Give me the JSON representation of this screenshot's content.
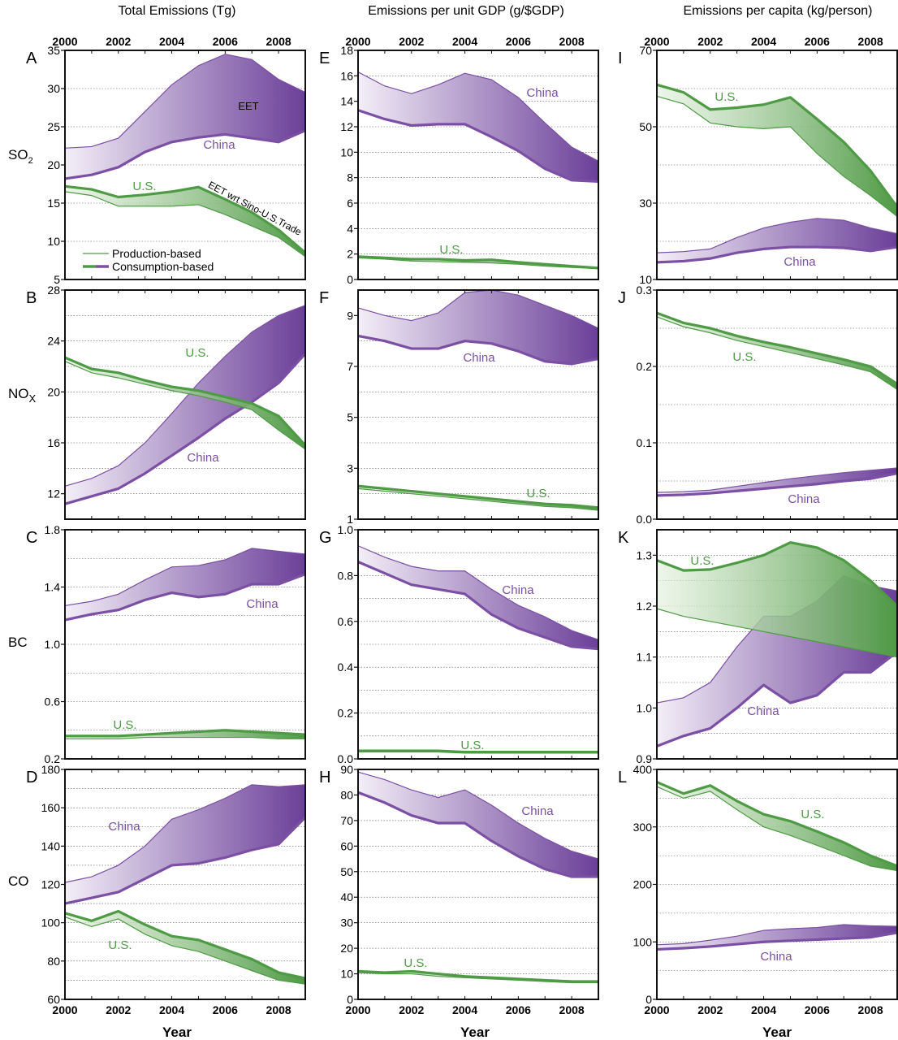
{
  "column_titles": [
    "Total Emissions (Tg)",
    "Emissions per unit GDP (g/$GDP)",
    "Emissions per capita (kg/person)"
  ],
  "row_labels": [
    "SO2",
    "NOX",
    "BC",
    "CO"
  ],
  "x_axis_title": "Year",
  "colors": {
    "china": "#7b4fa3",
    "china_light": "#f3eef7",
    "china_dark": "#6b3f99",
    "us": "#4f9a45",
    "us_light": "#e6f2e1"
  },
  "legend": {
    "production": "Production-based",
    "consumption": "Consumption-based"
  },
  "annotations": {
    "eet": "EET",
    "eet_trade": "EET wrt Sino-U.S.Trade"
  },
  "series_names": {
    "china": "China",
    "us": "U.S."
  },
  "chart_data": [
    {
      "panel": "A",
      "type": "area",
      "row": "SO2",
      "col": 0,
      "xlim": [
        2000,
        2009
      ],
      "ylim": [
        5,
        35
      ],
      "yticks": [
        5,
        10,
        15,
        20,
        25,
        30,
        35
      ],
      "x": [
        2000,
        2001,
        2002,
        2003,
        2004,
        2005,
        2006,
        2007,
        2008,
        2009
      ],
      "series": [
        {
          "name": "China",
          "production": [
            22.2,
            22.4,
            23.5,
            27,
            30.5,
            33,
            34.5,
            33.8,
            31.2,
            29.5
          ],
          "consumption": [
            18.2,
            18.7,
            19.7,
            21.7,
            23,
            23.6,
            24,
            23.5,
            23,
            24.5
          ]
        },
        {
          "name": "U.S.",
          "production": [
            16.5,
            16,
            14.6,
            14.6,
            14.6,
            14.8,
            13.5,
            12,
            10.5,
            8
          ],
          "consumption": [
            17.2,
            16.8,
            15.8,
            16.1,
            16.5,
            17.1,
            15.5,
            13.8,
            11.5,
            8.5
          ]
        }
      ]
    },
    {
      "panel": "E",
      "type": "area",
      "row": "SO2",
      "col": 1,
      "xlim": [
        2000,
        2009
      ],
      "ylim": [
        0,
        18
      ],
      "yticks": [
        0,
        2,
        4,
        6,
        8,
        10,
        12,
        14,
        16,
        18
      ],
      "x": [
        2000,
        2001,
        2002,
        2003,
        2004,
        2005,
        2006,
        2007,
        2008,
        2009
      ],
      "series": [
        {
          "name": "China",
          "production": [
            16.3,
            15.2,
            14.6,
            15.3,
            16.2,
            15.7,
            14.3,
            12.3,
            10.4,
            9.3
          ],
          "consumption": [
            13.3,
            12.6,
            12.1,
            12.2,
            12.2,
            11.2,
            10.1,
            8.7,
            7.8,
            7.7
          ]
        },
        {
          "name": "U.S.",
          "production": [
            1.7,
            1.6,
            1.45,
            1.4,
            1.35,
            1.3,
            1.2,
            1.05,
            0.95,
            0.85
          ],
          "consumption": [
            1.8,
            1.7,
            1.6,
            1.6,
            1.5,
            1.55,
            1.35,
            1.2,
            1.05,
            0.9
          ]
        }
      ]
    },
    {
      "panel": "I",
      "type": "area",
      "row": "SO2",
      "col": 2,
      "xlim": [
        2000,
        2009
      ],
      "ylim": [
        10,
        70
      ],
      "yticks": [
        10,
        30,
        50,
        70
      ],
      "ygrid": [
        10,
        20,
        30,
        40,
        50,
        60,
        70
      ],
      "x": [
        2000,
        2001,
        2002,
        2003,
        2004,
        2005,
        2006,
        2007,
        2008,
        2009
      ],
      "series": [
        {
          "name": "China",
          "production": [
            17,
            17.3,
            18,
            21,
            23.5,
            25,
            26,
            25.5,
            23.5,
            22
          ],
          "consumption": [
            14.5,
            14.8,
            15.5,
            17,
            18,
            18.5,
            18.5,
            18.3,
            17.5,
            18.5
          ]
        },
        {
          "name": "U.S.",
          "production": [
            58,
            56,
            51,
            50,
            49.5,
            50,
            43,
            37,
            32,
            26.5
          ],
          "consumption": [
            61,
            59,
            54.5,
            55,
            55.8,
            57.7,
            52,
            46,
            38.5,
            29
          ]
        }
      ]
    },
    {
      "panel": "B",
      "type": "area",
      "row": "NOX",
      "col": 0,
      "xlim": [
        2000,
        2009
      ],
      "ylim": [
        10,
        28
      ],
      "yticks": [
        12,
        16,
        20,
        24,
        28
      ],
      "ygrid": [
        10,
        12,
        14,
        16,
        18,
        20,
        22,
        24,
        26,
        28
      ],
      "x": [
        2000,
        2001,
        2002,
        2003,
        2004,
        2005,
        2006,
        2007,
        2008,
        2009
      ],
      "series": [
        {
          "name": "China",
          "production": [
            12.6,
            13.2,
            14.2,
            16,
            18.3,
            20.7,
            22.8,
            24.7,
            26,
            26.8
          ],
          "consumption": [
            11.2,
            11.8,
            12.4,
            13.6,
            15,
            16.4,
            17.9,
            19.2,
            20.7,
            23
          ]
        },
        {
          "name": "U.S.",
          "production": [
            22.4,
            21.5,
            21.1,
            20.6,
            20.1,
            19.7,
            19.2,
            18.6,
            17,
            15.5
          ],
          "consumption": [
            22.7,
            21.8,
            21.5,
            20.9,
            20.4,
            20.1,
            19.6,
            19.1,
            18.1,
            15.8
          ]
        }
      ]
    },
    {
      "panel": "F",
      "type": "area",
      "row": "NOX",
      "col": 1,
      "xlim": [
        2000,
        2009
      ],
      "ylim": [
        1,
        10
      ],
      "yticks": [
        1,
        3,
        5,
        7,
        9
      ],
      "ygrid": [
        1,
        2,
        3,
        4,
        5,
        6,
        7,
        8,
        9,
        10
      ],
      "x": [
        2000,
        2001,
        2002,
        2003,
        2004,
        2005,
        2006,
        2007,
        2008,
        2009
      ],
      "series": [
        {
          "name": "China",
          "production": [
            9.3,
            9,
            8.8,
            9.1,
            9.9,
            10,
            9.8,
            9.4,
            9,
            8.5
          ],
          "consumption": [
            8.2,
            8,
            7.7,
            7.7,
            8,
            7.9,
            7.6,
            7.2,
            7.1,
            7.3
          ]
        },
        {
          "name": "U.S.",
          "production": [
            2.2,
            2.1,
            2,
            1.9,
            1.8,
            1.7,
            1.6,
            1.5,
            1.45,
            1.35
          ],
          "consumption": [
            2.3,
            2.2,
            2.1,
            2,
            1.9,
            1.8,
            1.7,
            1.6,
            1.55,
            1.45
          ]
        }
      ]
    },
    {
      "panel": "J",
      "type": "area",
      "row": "NOX",
      "col": 2,
      "xlim": [
        2000,
        2009
      ],
      "ylim": [
        0,
        0.3
      ],
      "yticks": [
        0,
        0.1,
        0.2,
        0.3
      ],
      "ygrid": [
        0,
        0.05,
        0.1,
        0.15,
        0.2,
        0.25,
        0.3
      ],
      "x": [
        2000,
        2001,
        2002,
        2003,
        2004,
        2005,
        2006,
        2007,
        2008,
        2009
      ],
      "series": [
        {
          "name": "China",
          "production": [
            0.035,
            0.036,
            0.038,
            0.043,
            0.048,
            0.053,
            0.057,
            0.061,
            0.064,
            0.067
          ],
          "consumption": [
            0.031,
            0.032,
            0.034,
            0.037,
            0.04,
            0.043,
            0.046,
            0.05,
            0.053,
            0.06
          ]
        },
        {
          "name": "U.S.",
          "production": [
            0.265,
            0.252,
            0.244,
            0.234,
            0.226,
            0.218,
            0.21,
            0.202,
            0.193,
            0.17
          ],
          "consumption": [
            0.27,
            0.257,
            0.25,
            0.24,
            0.232,
            0.225,
            0.217,
            0.209,
            0.2,
            0.177
          ]
        }
      ]
    },
    {
      "panel": "C",
      "type": "area",
      "row": "BC",
      "col": 0,
      "xlim": [
        2000,
        2009
      ],
      "ylim": [
        0.2,
        1.8
      ],
      "yticks": [
        0.2,
        0.6,
        1.0,
        1.4,
        1.8
      ],
      "ygrid": [
        0.2,
        0.4,
        0.6,
        0.8,
        1.0,
        1.2,
        1.4,
        1.6,
        1.8
      ],
      "x": [
        2000,
        2001,
        2002,
        2003,
        2004,
        2005,
        2006,
        2007,
        2008,
        2009
      ],
      "series": [
        {
          "name": "China",
          "production": [
            1.27,
            1.3,
            1.35,
            1.45,
            1.54,
            1.55,
            1.59,
            1.67,
            1.65,
            1.63
          ],
          "consumption": [
            1.17,
            1.21,
            1.24,
            1.31,
            1.36,
            1.33,
            1.35,
            1.42,
            1.42,
            1.49
          ]
        },
        {
          "name": "U.S.",
          "production": [
            0.34,
            0.34,
            0.34,
            0.35,
            0.35,
            0.35,
            0.35,
            0.35,
            0.34,
            0.34
          ],
          "consumption": [
            0.36,
            0.36,
            0.36,
            0.37,
            0.38,
            0.39,
            0.4,
            0.39,
            0.38,
            0.37
          ]
        }
      ]
    },
    {
      "panel": "G",
      "type": "area",
      "row": "BC",
      "col": 1,
      "xlim": [
        2000,
        2009
      ],
      "ylim": [
        0,
        1.0
      ],
      "yticks": [
        0,
        0.2,
        0.4,
        0.6,
        0.8,
        1.0
      ],
      "ygrid": [
        0,
        0.1,
        0.2,
        0.3,
        0.4,
        0.5,
        0.6,
        0.7,
        0.8,
        0.9,
        1.0
      ],
      "x": [
        2000,
        2001,
        2002,
        2003,
        2004,
        2005,
        2006,
        2007,
        2008,
        2009
      ],
      "series": [
        {
          "name": "China",
          "production": [
            0.93,
            0.88,
            0.84,
            0.82,
            0.82,
            0.74,
            0.67,
            0.62,
            0.56,
            0.52
          ],
          "consumption": [
            0.86,
            0.81,
            0.76,
            0.74,
            0.72,
            0.63,
            0.57,
            0.53,
            0.49,
            0.48
          ]
        },
        {
          "name": "U.S.",
          "production": [
            0.03,
            0.03,
            0.03,
            0.03,
            0.025,
            0.025,
            0.025,
            0.025,
            0.025,
            0.025
          ],
          "consumption": [
            0.035,
            0.035,
            0.035,
            0.035,
            0.03,
            0.03,
            0.03,
            0.03,
            0.03,
            0.03
          ]
        }
      ]
    },
    {
      "panel": "K",
      "type": "area",
      "row": "BC",
      "col": 2,
      "xlim": [
        2000,
        2009
      ],
      "ylim": [
        0.9,
        1.35
      ],
      "yticks": [
        0.9,
        1.0,
        1.1,
        1.2,
        1.3
      ],
      "ygrid": [
        0.9,
        0.95,
        1.0,
        1.05,
        1.1,
        1.15,
        1.2,
        1.25,
        1.3
      ],
      "x": [
        2000,
        2001,
        2002,
        2003,
        2004,
        2005,
        2006,
        2007,
        2008,
        2009
      ],
      "series": [
        {
          "name": "China",
          "production": [
            1.01,
            1.02,
            1.05,
            1.12,
            1.18,
            1.18,
            1.21,
            1.26,
            1.24,
            1.23
          ],
          "consumption": [
            0.925,
            0.945,
            0.96,
            1.0,
            1.045,
            1.01,
            1.025,
            1.07,
            1.07,
            1.11
          ]
        },
        {
          "name": "U.S.",
          "production": [
            1.195,
            1.18,
            1.17,
            1.16,
            1.15,
            1.14,
            1.13,
            1.12,
            1.11,
            1.1
          ],
          "consumption": [
            1.29,
            1.27,
            1.272,
            1.285,
            1.3,
            1.325,
            1.315,
            1.29,
            1.25,
            1.2
          ]
        }
      ]
    },
    {
      "panel": "D",
      "type": "area",
      "row": "CO",
      "col": 0,
      "xlim": [
        2000,
        2009
      ],
      "ylim": [
        60,
        180
      ],
      "yticks": [
        60,
        80,
        100,
        120,
        140,
        160,
        180
      ],
      "ygrid": [
        60,
        70,
        80,
        90,
        100,
        110,
        120,
        130,
        140,
        150,
        160,
        170,
        180
      ],
      "x": [
        2000,
        2001,
        2002,
        2003,
        2004,
        2005,
        2006,
        2007,
        2008,
        2009
      ],
      "series": [
        {
          "name": "China",
          "production": [
            121,
            124,
            130,
            140,
            154,
            159,
            165,
            172,
            171,
            172
          ],
          "consumption": [
            110,
            113,
            116,
            123,
            130,
            131,
            134,
            138,
            141,
            155
          ]
        },
        {
          "name": "U.S.",
          "production": [
            103,
            98,
            102,
            94,
            88,
            85,
            80,
            75,
            70,
            68
          ],
          "consumption": [
            105,
            101,
            106,
            99,
            93,
            91,
            86,
            81,
            74,
            71
          ]
        }
      ]
    },
    {
      "panel": "H",
      "type": "area",
      "row": "CO",
      "col": 1,
      "xlim": [
        2000,
        2009
      ],
      "ylim": [
        0,
        90
      ],
      "yticks": [
        0,
        10,
        20,
        30,
        40,
        50,
        60,
        70,
        80,
        90
      ],
      "x": [
        2000,
        2001,
        2002,
        2003,
        2004,
        2005,
        2006,
        2007,
        2008,
        2009
      ],
      "series": [
        {
          "name": "China",
          "production": [
            89,
            86,
            82,
            79,
            82,
            76,
            69,
            63,
            58,
            55
          ],
          "consumption": [
            81,
            77,
            72,
            69,
            69,
            62,
            56,
            51,
            48,
            48
          ]
        },
        {
          "name": "U.S.",
          "production": [
            10.5,
            10,
            10,
            9,
            8.5,
            8,
            7.5,
            7,
            6.5,
            6.5
          ],
          "consumption": [
            11,
            10.5,
            11,
            10,
            9,
            8.5,
            8,
            7.5,
            7,
            7
          ]
        }
      ]
    },
    {
      "panel": "L",
      "type": "area",
      "row": "CO",
      "col": 2,
      "xlim": [
        2000,
        2009
      ],
      "ylim": [
        0,
        400
      ],
      "yticks": [
        0,
        100,
        200,
        300,
        400
      ],
      "ygrid": [
        0,
        50,
        100,
        150,
        200,
        250,
        300,
        350,
        400
      ],
      "x": [
        2000,
        2001,
        2002,
        2003,
        2004,
        2005,
        2006,
        2007,
        2008,
        2009
      ],
      "series": [
        {
          "name": "China",
          "production": [
            95,
            97,
            103,
            110,
            120,
            123,
            125,
            130,
            128,
            127
          ],
          "consumption": [
            87,
            89,
            92,
            96,
            100,
            102,
            104,
            106,
            108,
            116
          ]
        },
        {
          "name": "U.S.",
          "production": [
            370,
            350,
            362,
            330,
            300,
            285,
            268,
            250,
            232,
            224
          ],
          "consumption": [
            378,
            358,
            372,
            345,
            322,
            310,
            292,
            273,
            250,
            232
          ]
        }
      ]
    }
  ]
}
